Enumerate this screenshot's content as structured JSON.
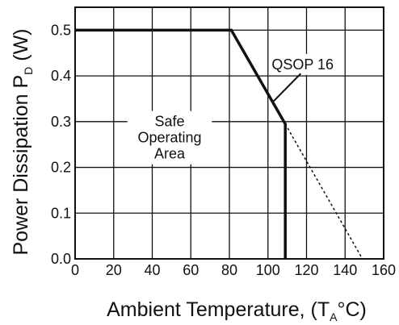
{
  "chart_data": {
    "type": "line",
    "xlabel": {
      "prefix": "Ambient Temperature, (T",
      "subscript": "A",
      "suffix": "°C)"
    },
    "ylabel": {
      "prefix": "Power Dissipation  P",
      "subscript": "D",
      "suffix": " (W)"
    },
    "xlim": [
      0,
      160
    ],
    "ylim": [
      0,
      0.55
    ],
    "x_ticks": [
      {
        "value": 0,
        "label": "0"
      },
      {
        "value": 20,
        "label": "20"
      },
      {
        "value": 40,
        "label": "40"
      },
      {
        "value": 60,
        "label": "60"
      },
      {
        "value": 80,
        "label": "80"
      },
      {
        "value": 100,
        "label": "100"
      },
      {
        "value": 120,
        "label": "120"
      },
      {
        "value": 140,
        "label": "140"
      },
      {
        "value": 160,
        "label": "160"
      }
    ],
    "y_ticks": [
      {
        "value": 0.0,
        "label": "0.0"
      },
      {
        "value": 0.1,
        "label": "0.1"
      },
      {
        "value": 0.2,
        "label": "0.2"
      },
      {
        "value": 0.3,
        "label": "0.3"
      },
      {
        "value": 0.4,
        "label": "0.4"
      },
      {
        "value": 0.5,
        "label": "0.5"
      }
    ],
    "grid": true,
    "series": [
      {
        "style": "solid",
        "color": "#111111",
        "points": [
          {
            "x": 0,
            "y": 0.5
          },
          {
            "x": 81,
            "y": 0.5
          },
          {
            "x": 109,
            "y": 0.295
          },
          {
            "x": 109,
            "y": 0.0
          }
        ]
      },
      {
        "style": "dotted",
        "color": "#111111",
        "points": [
          {
            "x": 109,
            "y": 0.295
          },
          {
            "x": 149,
            "y": 0.0
          }
        ]
      }
    ],
    "annotations": [
      {
        "lines": [
          "QSOP 16"
        ],
        "x": 118,
        "y": 0.425
      },
      {
        "lines": [
          "Safe",
          "Operating",
          "Area"
        ],
        "x": 49,
        "y": 0.265
      }
    ]
  }
}
